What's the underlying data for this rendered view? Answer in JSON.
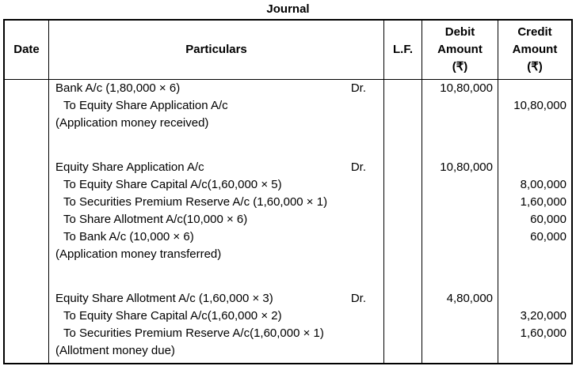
{
  "title": "Journal",
  "headers": {
    "date": "Date",
    "particulars": "Particulars",
    "lf": "L.F.",
    "debit": "Debit\nAmount\n(₹)",
    "credit": "Credit\nAmount\n(₹)"
  },
  "rows": [
    {
      "type": "entry",
      "indent": false,
      "particulars": "Bank A/c (1,80,000 × 6)",
      "dr": "Dr.",
      "debit": "10,80,000",
      "credit": ""
    },
    {
      "type": "entry",
      "indent": true,
      "particulars": "To Equity Share Application A/c",
      "dr": "",
      "debit": "",
      "credit": "10,80,000"
    },
    {
      "type": "narration",
      "indent": false,
      "particulars": "(Application money received)",
      "dr": "",
      "debit": "",
      "credit": ""
    },
    {
      "type": "spacer",
      "indent": false,
      "particulars": "",
      "dr": "",
      "debit": "",
      "credit": ""
    },
    {
      "type": "entry",
      "indent": false,
      "particulars": "Equity Share Application A/c",
      "dr": "Dr.",
      "debit": "10,80,000",
      "credit": ""
    },
    {
      "type": "entry",
      "indent": true,
      "particulars": "To Equity Share Capital A/c(1,60,000 × 5)",
      "dr": "",
      "debit": "",
      "credit": "8,00,000"
    },
    {
      "type": "entry",
      "indent": true,
      "particulars": "To Securities Premium Reserve A/c (1,60,000 × 1)",
      "dr": "",
      "debit": "",
      "credit": "1,60,000"
    },
    {
      "type": "entry",
      "indent": true,
      "particulars": "To Share Allotment A/c(10,000 × 6)",
      "dr": "",
      "debit": "",
      "credit": "60,000"
    },
    {
      "type": "entry",
      "indent": true,
      "particulars": "To Bank A/c (10,000 × 6)",
      "dr": "",
      "debit": "",
      "credit": "60,000"
    },
    {
      "type": "narration",
      "indent": false,
      "particulars": "(Application money transferred)",
      "dr": "",
      "debit": "",
      "credit": ""
    },
    {
      "type": "spacer",
      "indent": false,
      "particulars": "",
      "dr": "",
      "debit": "",
      "credit": ""
    },
    {
      "type": "entry",
      "indent": false,
      "particulars": "Equity Share Allotment A/c (1,60,000 × 3)",
      "dr": "Dr.",
      "debit": "4,80,000",
      "credit": ""
    },
    {
      "type": "entry",
      "indent": true,
      "particulars": "To Equity Share Capital A/c(1,60,000 × 2)",
      "dr": "",
      "debit": "",
      "credit": "3,20,000"
    },
    {
      "type": "entry",
      "indent": true,
      "particulars": "To Securities Premium Reserve A/c(1,60,000 × 1)",
      "dr": "",
      "debit": "",
      "credit": "1,60,000"
    },
    {
      "type": "narration",
      "indent": false,
      "particulars": "(Allotment money due)",
      "dr": "",
      "debit": "",
      "credit": ""
    }
  ]
}
